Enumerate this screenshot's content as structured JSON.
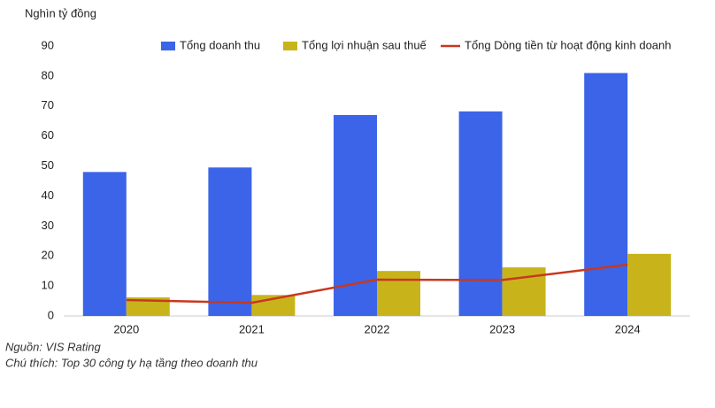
{
  "chart_data": {
    "type": "bar-line",
    "y_label": "Nghìn tỷ đồng",
    "categories": [
      "2020",
      "2021",
      "2022",
      "2023",
      "2024"
    ],
    "series": [
      {
        "name": "Tổng doanh thu",
        "color": "#3c64e8",
        "type": "bar",
        "values": [
          48,
          49.5,
          67,
          68.2,
          81
        ]
      },
      {
        "name": "Tổng lợi nhuận sau thuế",
        "color": "#c8b41a",
        "type": "bar",
        "values": [
          6.2,
          7,
          15,
          16.2,
          20.7
        ]
      },
      {
        "name": "Tổng Dòng tiền từ hoạt động kinh doanh",
        "color": "#c8381e",
        "type": "line",
        "values": [
          5.3,
          4.4,
          12.1,
          12,
          17.1
        ]
      }
    ],
    "ylim": [
      0,
      90
    ],
    "yticks": [
      0,
      10,
      20,
      30,
      40,
      50,
      60,
      70,
      80,
      90
    ],
    "grid": false,
    "source": "Nguồn: VIS Rating",
    "note": "Chú thích: Top 30 công ty hạ tầng theo doanh thu"
  }
}
